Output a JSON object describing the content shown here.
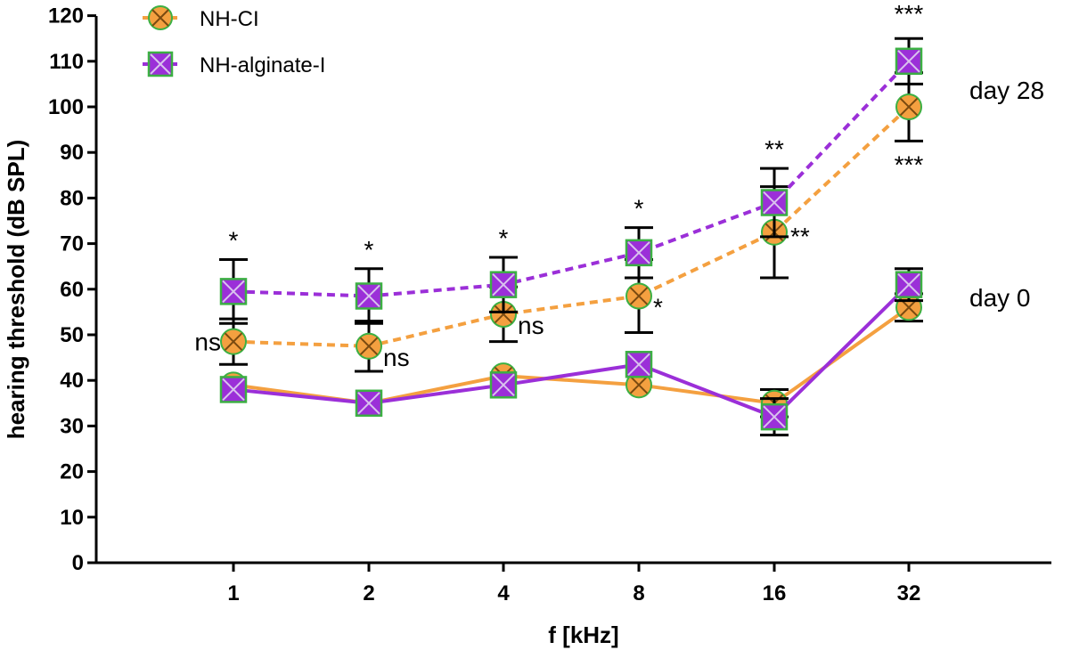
{
  "chart_data": {
    "type": "line",
    "title": "",
    "xlabel": "f [kHz]",
    "ylabel": "hearing threshold (dB SPL)",
    "categories": [
      "1",
      "2",
      "4",
      "8",
      "16",
      "32"
    ],
    "yticks": [
      "0",
      "10",
      "20",
      "30",
      "40",
      "50",
      "60",
      "70",
      "80",
      "90",
      "100",
      "110",
      "120"
    ],
    "ylim": [
      0,
      120
    ],
    "legend": {
      "placement": "top-left",
      "entries": [
        "NH-CI",
        "NH-alginate-I"
      ]
    },
    "colors": {
      "orange": "#F4A040",
      "purple": "#9B2FD8",
      "marker_edge": "#3CB043",
      "axis": "#000000"
    },
    "series": [
      {
        "name": "NH-CI",
        "day": "day 0",
        "style": "solid",
        "marker": "circle-x",
        "values": [
          39,
          35,
          41,
          39,
          35,
          56
        ],
        "err": [
          0,
          0,
          0,
          0,
          3,
          3
        ]
      },
      {
        "name": "NH-alginate-I",
        "day": "day 0",
        "style": "solid",
        "marker": "square-x",
        "values": [
          38,
          35,
          39,
          43.5,
          32,
          61
        ],
        "err": [
          0,
          0,
          0,
          0,
          4,
          3.5
        ]
      },
      {
        "name": "NH-CI",
        "day": "day 28",
        "style": "dashed",
        "marker": "circle-x",
        "values": [
          48.5,
          47.5,
          54.5,
          58.5,
          72.5,
          100
        ],
        "err": [
          5,
          5.5,
          6,
          8,
          10,
          7.5
        ]
      },
      {
        "name": "NH-alginate-I",
        "day": "day 28",
        "style": "dashed",
        "marker": "square-x",
        "values": [
          59.5,
          58.5,
          61,
          68,
          79,
          110
        ],
        "err": [
          7,
          6,
          6,
          5.5,
          7.5,
          5
        ]
      }
    ],
    "day_labels": [
      "day 28",
      "day 0"
    ],
    "annotations": [
      {
        "text": "*",
        "series": "NH-alginate-I day 28",
        "category": "1"
      },
      {
        "text": "ns",
        "series": "NH-CI day 28",
        "category": "1"
      },
      {
        "text": "*",
        "series": "NH-alginate-I day 28",
        "category": "2"
      },
      {
        "text": "ns",
        "series": "NH-CI day 28",
        "category": "2"
      },
      {
        "text": "*",
        "series": "NH-alginate-I day 28",
        "category": "4"
      },
      {
        "text": "ns",
        "series": "NH-CI day 28",
        "category": "4"
      },
      {
        "text": "*",
        "series": "NH-alginate-I day 28",
        "category": "8"
      },
      {
        "text": "*",
        "series": "NH-CI day 28",
        "category": "8"
      },
      {
        "text": "**",
        "series": "NH-alginate-I day 28",
        "category": "16"
      },
      {
        "text": "**",
        "series": "NH-CI day 28",
        "category": "16"
      },
      {
        "text": "***",
        "series": "NH-alginate-I day 28",
        "category": "32"
      },
      {
        "text": "***",
        "series": "NH-CI day 28",
        "category": "32"
      }
    ]
  }
}
